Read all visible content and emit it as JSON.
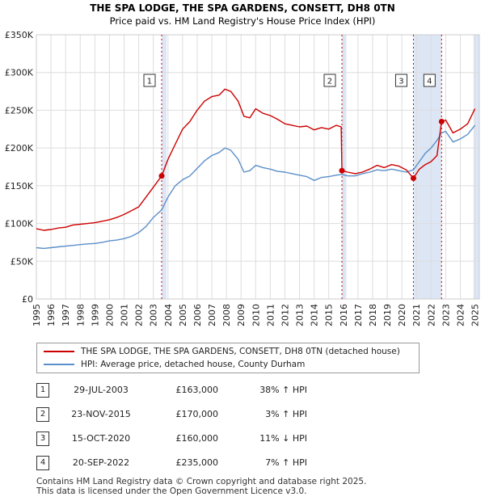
{
  "chart_data": {
    "type": "line",
    "title": "THE SPA LODGE, THE SPA GARDENS, CONSETT, DH8 0TN",
    "subtitle": "Price paid vs. HM Land Registry's House Price Index (HPI)",
    "xlim": [
      1995,
      2025.3
    ],
    "ylim": [
      0,
      350000
    ],
    "x_ticks": [
      "1995",
      "1996",
      "1997",
      "1998",
      "1999",
      "2000",
      "2001",
      "2002",
      "2003",
      "2004",
      "2005",
      "2006",
      "2007",
      "2008",
      "2009",
      "2010",
      "2011",
      "2012",
      "2013",
      "2014",
      "2015",
      "2016",
      "2017",
      "2018",
      "2019",
      "2020",
      "2021",
      "2022",
      "2023",
      "2024",
      "2025"
    ],
    "y_ticks": [
      {
        "value": 0,
        "label": "£0"
      },
      {
        "value": 50000,
        "label": "£50K"
      },
      {
        "value": 100000,
        "label": "£100K"
      },
      {
        "value": 150000,
        "label": "£150K"
      },
      {
        "value": 200000,
        "label": "£200K"
      },
      {
        "value": 250000,
        "label": "£250K"
      },
      {
        "value": 300000,
        "label": "£300K"
      },
      {
        "value": 350000,
        "label": "£350K"
      }
    ],
    "shaded_spans": [
      [
        2003.57,
        2003.9
      ],
      [
        2015.9,
        2016.2
      ],
      [
        2020.79,
        2022.72
      ],
      [
        2024.9,
        2025.3
      ]
    ],
    "series": [
      {
        "name": "THE SPA LODGE, THE SPA GARDENS, CONSETT, DH8 0TN (detached house)",
        "color": "#cc0000",
        "points": [
          [
            1995.0,
            93000
          ],
          [
            1995.5,
            91000
          ],
          [
            1996.0,
            92000
          ],
          [
            1996.5,
            94000
          ],
          [
            1997.0,
            95000
          ],
          [
            1997.5,
            98000
          ],
          [
            1998.0,
            99000
          ],
          [
            1998.5,
            100000
          ],
          [
            1999.0,
            101000
          ],
          [
            1999.5,
            103000
          ],
          [
            2000.0,
            105000
          ],
          [
            2000.5,
            108000
          ],
          [
            2001.0,
            112000
          ],
          [
            2001.5,
            117000
          ],
          [
            2002.0,
            122000
          ],
          [
            2002.5,
            135000
          ],
          [
            2003.0,
            148000
          ],
          [
            2003.57,
            163000
          ],
          [
            2004.0,
            185000
          ],
          [
            2004.5,
            205000
          ],
          [
            2005.0,
            225000
          ],
          [
            2005.5,
            235000
          ],
          [
            2006.0,
            250000
          ],
          [
            2006.5,
            262000
          ],
          [
            2007.0,
            268000
          ],
          [
            2007.5,
            270000
          ],
          [
            2007.9,
            278000
          ],
          [
            2008.3,
            275000
          ],
          [
            2008.8,
            262000
          ],
          [
            2009.2,
            242000
          ],
          [
            2009.6,
            240000
          ],
          [
            2010.0,
            252000
          ],
          [
            2010.5,
            246000
          ],
          [
            2011.0,
            243000
          ],
          [
            2011.5,
            238000
          ],
          [
            2012.0,
            232000
          ],
          [
            2012.5,
            230000
          ],
          [
            2013.0,
            228000
          ],
          [
            2013.5,
            229000
          ],
          [
            2014.0,
            224000
          ],
          [
            2014.5,
            227000
          ],
          [
            2015.0,
            225000
          ],
          [
            2015.5,
            230000
          ],
          [
            2015.85,
            228000
          ],
          [
            2015.9,
            170000
          ],
          [
            2016.3,
            168000
          ],
          [
            2016.8,
            166000
          ],
          [
            2017.3,
            168000
          ],
          [
            2017.8,
            172000
          ],
          [
            2018.3,
            177000
          ],
          [
            2018.8,
            174000
          ],
          [
            2019.3,
            178000
          ],
          [
            2019.8,
            176000
          ],
          [
            2020.3,
            171000
          ],
          [
            2020.79,
            160000
          ],
          [
            2021.2,
            172000
          ],
          [
            2021.6,
            178000
          ],
          [
            2022.0,
            182000
          ],
          [
            2022.4,
            190000
          ],
          [
            2022.72,
            235000
          ],
          [
            2023.0,
            237000
          ],
          [
            2023.5,
            220000
          ],
          [
            2024.0,
            225000
          ],
          [
            2024.5,
            232000
          ],
          [
            2025.0,
            252000
          ]
        ]
      },
      {
        "name": "HPI: Average price, detached house, County Durham",
        "color": "#5b8fc9",
        "points": [
          [
            1995.0,
            68000
          ],
          [
            1995.5,
            67000
          ],
          [
            1996.0,
            68000
          ],
          [
            1996.5,
            69000
          ],
          [
            1997.0,
            70000
          ],
          [
            1997.5,
            71000
          ],
          [
            1998.0,
            72000
          ],
          [
            1998.5,
            73000
          ],
          [
            1999.0,
            73500
          ],
          [
            1999.5,
            75000
          ],
          [
            2000.0,
            77000
          ],
          [
            2000.5,
            78000
          ],
          [
            2001.0,
            80000
          ],
          [
            2001.5,
            83000
          ],
          [
            2002.0,
            88000
          ],
          [
            2002.5,
            96000
          ],
          [
            2003.0,
            108000
          ],
          [
            2003.57,
            118000
          ],
          [
            2004.0,
            135000
          ],
          [
            2004.5,
            150000
          ],
          [
            2005.0,
            158000
          ],
          [
            2005.5,
            163000
          ],
          [
            2006.0,
            173000
          ],
          [
            2006.5,
            183000
          ],
          [
            2007.0,
            190000
          ],
          [
            2007.5,
            194000
          ],
          [
            2007.9,
            200000
          ],
          [
            2008.3,
            197000
          ],
          [
            2008.8,
            185000
          ],
          [
            2009.2,
            168000
          ],
          [
            2009.6,
            170000
          ],
          [
            2010.0,
            177000
          ],
          [
            2010.5,
            174000
          ],
          [
            2011.0,
            172000
          ],
          [
            2011.5,
            169000
          ],
          [
            2012.0,
            168000
          ],
          [
            2012.5,
            166000
          ],
          [
            2013.0,
            164000
          ],
          [
            2013.5,
            162000
          ],
          [
            2014.0,
            157000
          ],
          [
            2014.5,
            161000
          ],
          [
            2015.0,
            162000
          ],
          [
            2015.5,
            164000
          ],
          [
            2015.9,
            165000
          ],
          [
            2016.3,
            163000
          ],
          [
            2016.8,
            163000
          ],
          [
            2017.3,
            166000
          ],
          [
            2017.8,
            168000
          ],
          [
            2018.3,
            171000
          ],
          [
            2018.8,
            170000
          ],
          [
            2019.3,
            172000
          ],
          [
            2019.8,
            170000
          ],
          [
            2020.3,
            168000
          ],
          [
            2020.79,
            171000
          ],
          [
            2021.2,
            182000
          ],
          [
            2021.6,
            193000
          ],
          [
            2022.0,
            200000
          ],
          [
            2022.4,
            210000
          ],
          [
            2022.72,
            220000
          ],
          [
            2023.0,
            222000
          ],
          [
            2023.5,
            208000
          ],
          [
            2024.0,
            212000
          ],
          [
            2024.5,
            218000
          ],
          [
            2025.0,
            230000
          ]
        ]
      }
    ],
    "sales_markers": [
      {
        "label": "1",
        "x": 2003.57,
        "y": 163000
      },
      {
        "label": "2",
        "x": 2015.9,
        "y": 170000
      },
      {
        "label": "3",
        "x": 2020.79,
        "y": 160000
      },
      {
        "label": "4",
        "x": 2022.72,
        "y": 235000
      }
    ]
  },
  "legend": {
    "property_label": "THE SPA LODGE, THE SPA GARDENS, CONSETT, DH8 0TN (detached house)",
    "hpi_label": "HPI: Average price, detached house, County Durham"
  },
  "sales": [
    {
      "num": "1",
      "date": "29-JUL-2003",
      "price": "£163,000",
      "hpi": "38% ↑ HPI"
    },
    {
      "num": "2",
      "date": "23-NOV-2015",
      "price": "£170,000",
      "hpi": "3% ↑ HPI"
    },
    {
      "num": "3",
      "date": "15-OCT-2020",
      "price": "£160,000",
      "hpi": "11% ↓ HPI"
    },
    {
      "num": "4",
      "date": "20-SEP-2022",
      "price": "£235,000",
      "hpi": "7% ↑ HPI"
    }
  ],
  "footer": {
    "line1": "Contains HM Land Registry data © Crown copyright and database right 2025.",
    "line2": "This data is licensed under the Open Government Licence v3.0."
  },
  "colors": {
    "property": "#cc0000",
    "hpi": "#5b8fc9",
    "shade": "#dde6f5",
    "grid": "#dddddd"
  }
}
